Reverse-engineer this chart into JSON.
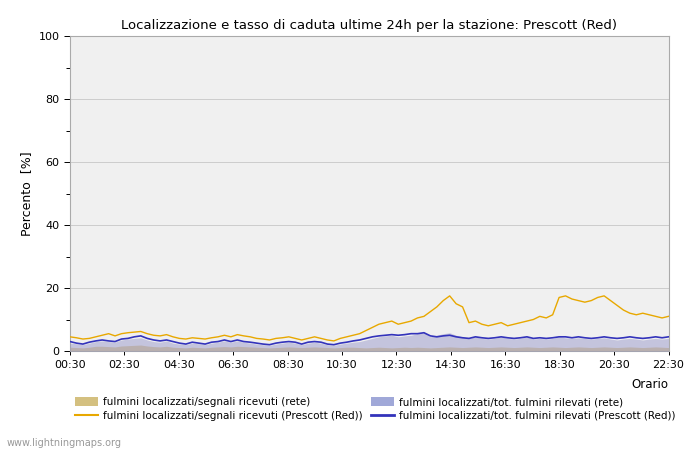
{
  "title": "Localizzazione e tasso di caduta ultime 24h per la stazione: Prescott (Red)",
  "ylabel": "Percento  [%]",
  "background_color": "#ffffff",
  "plot_bg_color": "#f0f0f0",
  "grid_color": "#cccccc",
  "watermark": "www.lightningmaps.org",
  "legend": [
    {
      "label": "fulmini localizzati/segnali ricevuti (rete)",
      "color": "#f0d898",
      "style": "fill"
    },
    {
      "label": "fulmini localizzati/segnali ricevuti (Prescott (Red))",
      "color": "#e8a800",
      "style": "line"
    },
    {
      "label": "fulmini localizzati/tot. fulmini rilevati (rete)",
      "color": "#b8c0e8",
      "style": "fill"
    },
    {
      "label": "fulmini localizzati/tot. fulmini rilevati (Prescott (Red))",
      "color": "#3333bb",
      "style": "line"
    }
  ],
  "xtick_labels": [
    "00:30",
    "02:30",
    "04:30",
    "06:30",
    "08:30",
    "10:30",
    "12:30",
    "14:30",
    "16:30",
    "18:30",
    "20:30",
    "22:30"
  ],
  "yticks_major": [
    0,
    20,
    40,
    60,
    80,
    100
  ],
  "yticks_minor": [
    10,
    30,
    50,
    70,
    90
  ],
  "ylim": [
    0,
    100
  ],
  "series": {
    "x": [
      0,
      0.5,
      1,
      1.5,
      2,
      2.5,
      3,
      3.5,
      4,
      4.5,
      5,
      5.5,
      6,
      6.5,
      7,
      7.5,
      8,
      8.5,
      9,
      9.5,
      10,
      10.5,
      11,
      11.5,
      12,
      12.5,
      13,
      13.5,
      14,
      14.5,
      15,
      15.5,
      16,
      16.5,
      17,
      17.5,
      18,
      18.5,
      19,
      19.5,
      20,
      20.5,
      21,
      21.5,
      22,
      22.5,
      23,
      23.5,
      24,
      24.5,
      25,
      25.5,
      26,
      26.5,
      27,
      27.5,
      28,
      28.5,
      29,
      29.5,
      30,
      30.5,
      31,
      31.5,
      32,
      32.5,
      33,
      33.5,
      34,
      34.5,
      35,
      35.5,
      36,
      36.5,
      37,
      37.5,
      38,
      38.5,
      39,
      39.5,
      40,
      40.5,
      41,
      41.5,
      42,
      42.5,
      43,
      43.5,
      44,
      44.5,
      45,
      45.5,
      46,
      46.5
    ],
    "rete_segnali": [
      1.2,
      1.1,
      1.0,
      1.2,
      1.5,
      1.5,
      1.4,
      1.3,
      1.6,
      1.7,
      1.8,
      1.9,
      1.6,
      1.4,
      1.3,
      1.5,
      1.2,
      1.1,
      1.0,
      1.2,
      1.1,
      1.0,
      1.2,
      1.3,
      1.4,
      1.3,
      1.5,
      1.4,
      1.3,
      1.2,
      1.1,
      1.0,
      1.1,
      1.2,
      1.3,
      1.2,
      1.1,
      1.2,
      1.3,
      1.2,
      1.1,
      1.0,
      1.1,
      1.2,
      1.2,
      1.1,
      1.0,
      1.1,
      1.2,
      1.1,
      1.0,
      1.1,
      1.2,
      1.1,
      1.2,
      1.1,
      1.0,
      1.1,
      1.2,
      1.3,
      1.2,
      1.1,
      1.2,
      1.3,
      1.2,
      1.1,
      1.2,
      1.3,
      1.2,
      1.1,
      1.2,
      1.3,
      1.2,
      1.1,
      1.2,
      1.3,
      1.2,
      1.1,
      1.2,
      1.3,
      1.2,
      1.1,
      1.2,
      1.3,
      1.2,
      1.1,
      1.2,
      1.3,
      1.2,
      1.1,
      1.2,
      1.3,
      1.2,
      1.1
    ],
    "prescott_segnali": [
      4.5,
      4.2,
      3.8,
      4.0,
      4.5,
      5.0,
      5.5,
      4.8,
      5.5,
      5.8,
      6.0,
      6.2,
      5.5,
      5.0,
      4.8,
      5.2,
      4.5,
      4.0,
      3.8,
      4.2,
      4.0,
      3.8,
      4.2,
      4.5,
      5.0,
      4.5,
      5.2,
      4.8,
      4.5,
      4.0,
      3.8,
      3.5,
      4.0,
      4.2,
      4.5,
      4.0,
      3.5,
      4.0,
      4.5,
      4.0,
      3.5,
      3.2,
      4.0,
      4.5,
      5.0,
      5.5,
      6.5,
      7.5,
      8.5,
      9.0,
      9.5,
      8.5,
      9.0,
      9.5,
      10.5,
      11.0,
      12.5,
      14.0,
      16.0,
      17.5,
      15.0,
      14.0,
      9.0,
      9.5,
      8.5,
      8.0,
      8.5,
      9.0,
      8.0,
      8.5,
      9.0,
      9.5,
      10.0,
      11.0,
      10.5,
      11.5,
      17.0,
      17.5,
      16.5,
      16.0,
      15.5,
      16.0,
      17.0,
      17.5,
      16.0,
      14.5,
      13.0,
      12.0,
      11.5,
      12.0,
      11.5,
      11.0,
      10.5,
      11.0
    ],
    "rete_fulmini": [
      2.5,
      2.3,
      2.0,
      2.5,
      3.0,
      3.2,
      3.0,
      2.8,
      3.5,
      3.8,
      4.0,
      4.2,
      3.5,
      3.0,
      2.8,
      3.2,
      2.5,
      2.2,
      2.0,
      2.5,
      2.3,
      2.0,
      2.5,
      2.8,
      3.2,
      2.8,
      3.2,
      2.8,
      2.5,
      2.2,
      2.0,
      1.8,
      2.2,
      2.5,
      2.8,
      2.5,
      2.0,
      2.5,
      2.8,
      2.5,
      2.0,
      1.8,
      2.2,
      2.5,
      2.8,
      3.0,
      3.5,
      4.0,
      4.5,
      4.8,
      5.0,
      4.5,
      4.8,
      5.0,
      5.5,
      5.8,
      4.5,
      5.0,
      5.5,
      5.8,
      5.0,
      4.5,
      4.0,
      4.5,
      4.0,
      3.8,
      4.0,
      4.5,
      4.0,
      3.8,
      4.0,
      4.5,
      3.8,
      4.0,
      3.8,
      4.0,
      4.5,
      4.2,
      4.0,
      4.2,
      4.0,
      3.8,
      4.0,
      4.2,
      3.8,
      3.5,
      3.8,
      4.0,
      3.8,
      3.5,
      3.8,
      4.0,
      3.8,
      4.0
    ],
    "prescott_fulmini": [
      3.0,
      2.5,
      2.2,
      2.8,
      3.2,
      3.5,
      3.2,
      3.0,
      3.8,
      4.0,
      4.5,
      4.8,
      4.0,
      3.5,
      3.2,
      3.5,
      3.0,
      2.5,
      2.2,
      2.8,
      2.5,
      2.2,
      2.8,
      3.0,
      3.5,
      3.0,
      3.5,
      3.0,
      2.8,
      2.5,
      2.2,
      2.0,
      2.5,
      2.8,
      3.0,
      2.8,
      2.2,
      2.8,
      3.0,
      2.8,
      2.2,
      2.0,
      2.5,
      2.8,
      3.2,
      3.5,
      4.0,
      4.5,
      4.8,
      5.0,
      5.2,
      5.0,
      5.2,
      5.5,
      5.5,
      5.8,
      4.8,
      4.5,
      4.8,
      5.0,
      4.5,
      4.2,
      4.0,
      4.5,
      4.2,
      4.0,
      4.2,
      4.5,
      4.2,
      4.0,
      4.2,
      4.5,
      4.0,
      4.2,
      4.0,
      4.2,
      4.5,
      4.5,
      4.2,
      4.5,
      4.2,
      4.0,
      4.2,
      4.5,
      4.2,
      4.0,
      4.2,
      4.5,
      4.2,
      4.0,
      4.2,
      4.5,
      4.2,
      4.5
    ]
  }
}
